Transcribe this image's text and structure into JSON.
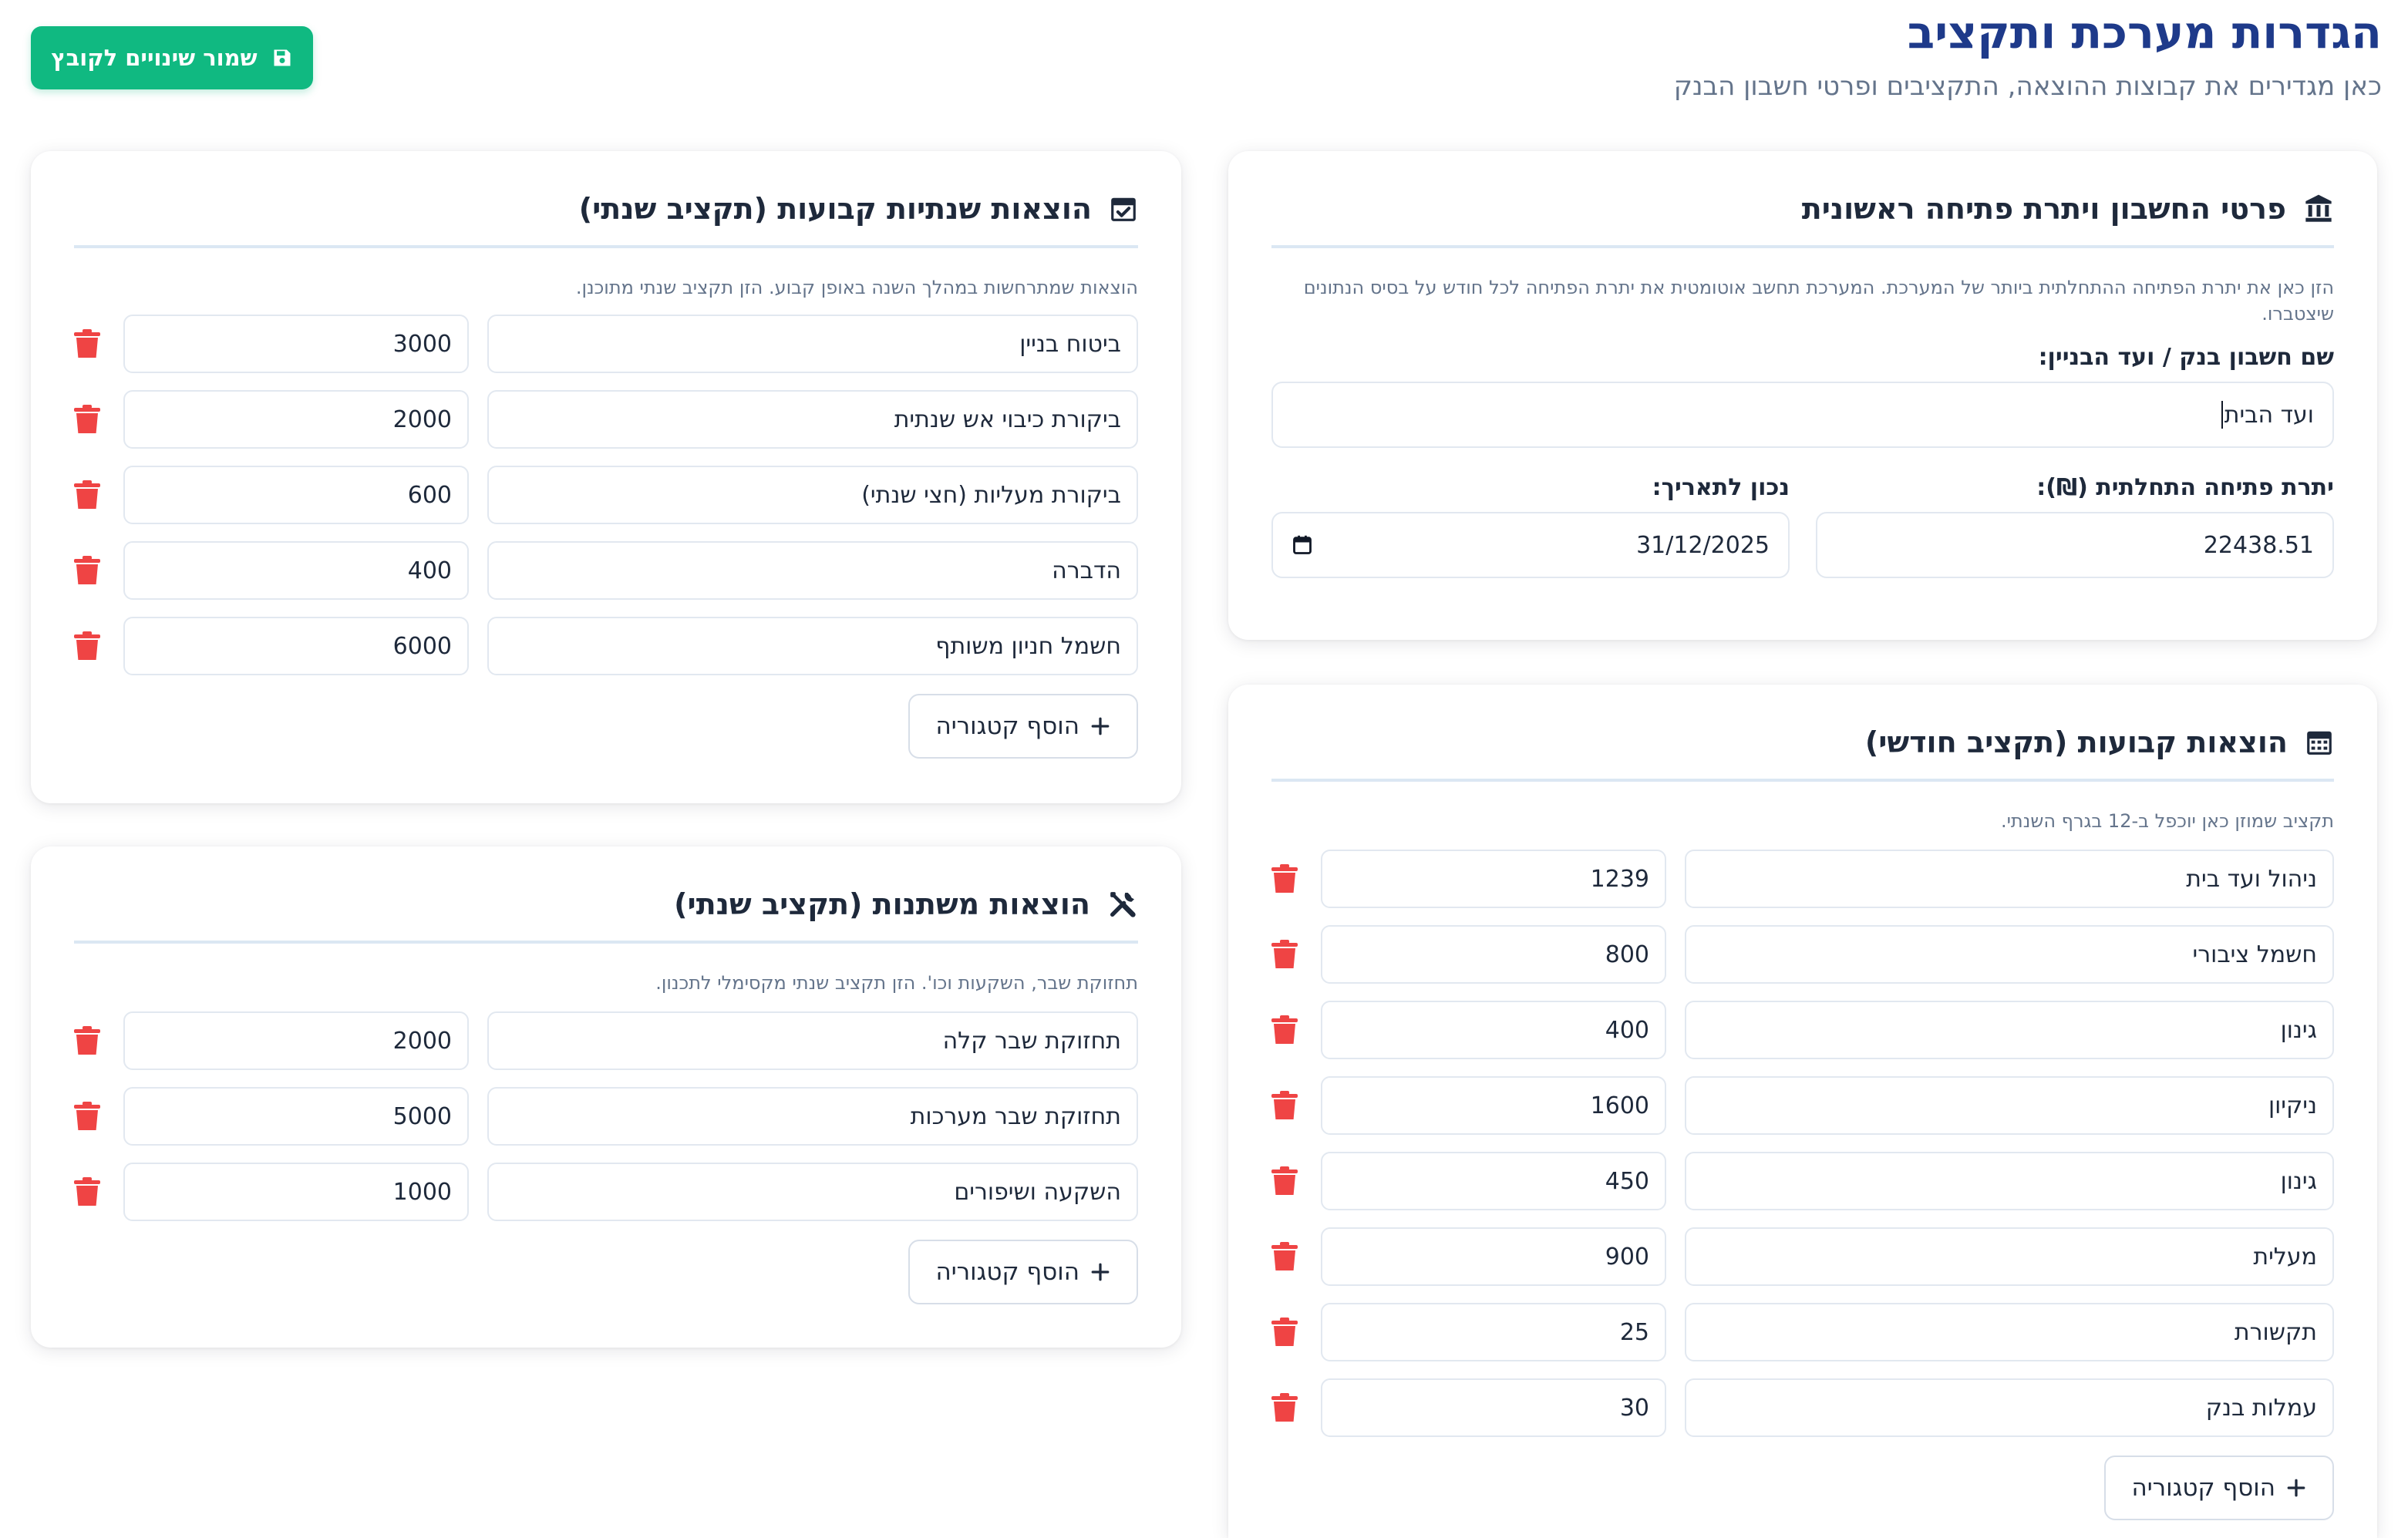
{
  "header": {
    "title": "הגדרות מערכת ותקציב",
    "subtitle": "כאן מגדירים את קבוצות ההוצאה, התקציבים ופרטי חשבון הבנק",
    "save_label": "שמור שינויים לקובץ",
    "save_icon": "floppy-disk-icon"
  },
  "account": {
    "title": "פרטי החשבון ויתרת פתיחה ראשונית",
    "icon": "bank-icon",
    "description": "הזן כאן את יתרת הפתיחה ההתחלתית ביותר של המערכת. המערכת תחשב אוטומטית את יתרת הפתיחה לכל חודש על בסיס הנתונים שיצטברו.",
    "name_label": "שם חשבון בנק / ועד הבניין:",
    "name_value": "ועד הבית",
    "balance_label": "יתרת פתיחה התחלתית (₪):",
    "balance_value": "22438.51",
    "date_label": "נכון לתאריך:",
    "date_value": "31/12/2025"
  },
  "annual_fixed": {
    "title": "הוצאות שנתיות קבועות (תקציב שנתי)",
    "icon": "calendar-check-icon",
    "description": "הוצאות שמתרחשות במהלך השנה באופן קבוע. הזן תקציב שנתי מתוכנן.",
    "items": [
      {
        "name": "ביטוח בניין",
        "amount": "3000"
      },
      {
        "name": "ביקורת כיבוי אש שנתית",
        "amount": "2000"
      },
      {
        "name": "ביקורת מעליות (חצי שנתי)",
        "amount": "600"
      },
      {
        "name": "הדברה",
        "amount": "400"
      },
      {
        "name": "חשמל חניון משותף",
        "amount": "6000"
      }
    ],
    "add_label": "הוסף קטגוריה"
  },
  "variable": {
    "title": "הוצאות משתנות (תקציב שנתי)",
    "icon": "tools-icon",
    "description": "תחזוקת שבר, השקעות וכו'. הזן תקציב שנתי מקסימלי לתכנון.",
    "items": [
      {
        "name": "תחזוקת שבר קלה",
        "amount": "2000"
      },
      {
        "name": "תחזוקת שבר מערכות",
        "amount": "5000"
      },
      {
        "name": "השקעה ושיפורים",
        "amount": "1000"
      }
    ],
    "add_label": "הוסף קטגוריה"
  },
  "monthly_fixed": {
    "title": "הוצאות קבועות (תקציב חודשי)",
    "icon": "calendar-icon",
    "description": "תקציב שמוזן כאן יוכפל ב-12 בגרף השנתי.",
    "items": [
      {
        "name": "ניהול ועד בית",
        "amount": "1239"
      },
      {
        "name": "חשמל ציבורי",
        "amount": "800"
      },
      {
        "name": "גינון",
        "amount": "400"
      },
      {
        "name": "ניקיון",
        "amount": "1600"
      },
      {
        "name": "גינון",
        "amount": "450"
      },
      {
        "name": "מעלית",
        "amount": "900"
      },
      {
        "name": "תקשורת",
        "amount": "25"
      },
      {
        "name": "עמלות בנק",
        "amount": "30"
      }
    ],
    "add_label": "הוסף קטגוריה"
  },
  "colors": {
    "title_blue": "#1e3a8a",
    "save_green": "#10b981",
    "trash_red": "#ef4444",
    "divider": "#dbe7f3"
  }
}
